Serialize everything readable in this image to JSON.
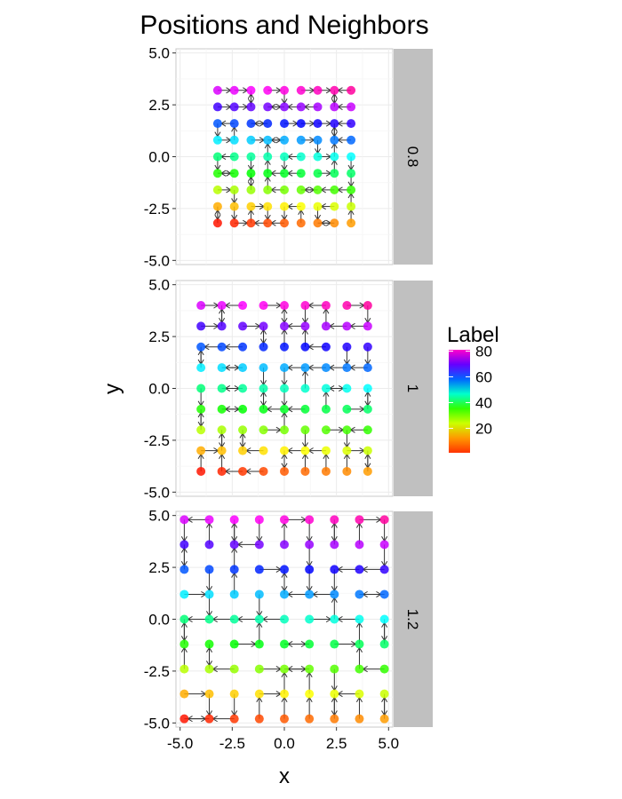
{
  "chart_data": {
    "type": "scatter",
    "title": "Positions and Neighbors",
    "xlabel": "x",
    "ylabel": "y",
    "xlim": [
      -5.2,
      5.2
    ],
    "ylim": [
      -5.2,
      5.2
    ],
    "x_ticks": [
      -5,
      -2.5,
      0,
      2.5,
      5
    ],
    "x_tick_labels": [
      "-5.0",
      "-2.5",
      "0.0",
      "2.5",
      "5.0"
    ],
    "y_ticks": [
      -5,
      -2.5,
      0,
      2.5,
      5
    ],
    "y_tick_labels": [
      "-5.0",
      "-2.5",
      "0.0",
      "2.5",
      "5.0"
    ],
    "grid": true,
    "facet_variable": "spacing",
    "facets": [
      {
        "label": "0.8",
        "spacing": 0.8
      },
      {
        "label": "1",
        "spacing": 1.0
      },
      {
        "label": "1.2",
        "spacing": 1.2
      }
    ],
    "grid_points_per_side": 9,
    "label_range": [
      1,
      81
    ],
    "legend": {
      "title": "Label",
      "ticks": [
        20,
        40,
        60,
        80
      ],
      "tick_labels": [
        "20",
        "40",
        "60",
        "80"
      ],
      "placement": "right",
      "gradient_colors": [
        "#ff3300",
        "#ff9900",
        "#ccff00",
        "#33ff00",
        "#00ffcc",
        "#0066ff",
        "#6600ff",
        "#ff00cc"
      ]
    },
    "background": "#ffffff",
    "strip_color": "#c0c0c0",
    "panel_border_color": "#c8c8c8",
    "arrow_color": "#333333"
  }
}
